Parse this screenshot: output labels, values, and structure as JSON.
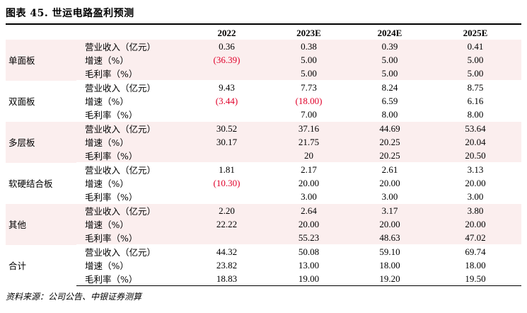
{
  "title": "图表 45. 世运电路盈利预测",
  "columns": [
    "",
    "",
    "2022",
    "2023E",
    "2024E",
    "2025E"
  ],
  "groups": [
    {
      "segment": "单面板",
      "rows": [
        {
          "metric": "营业收入（亿元）",
          "values": [
            "0.36",
            "0.38",
            "0.39",
            "0.41"
          ],
          "neg": [
            false,
            false,
            false,
            false
          ]
        },
        {
          "metric": "增速（%）",
          "values": [
            "(36.39)",
            "5.00",
            "5.00",
            "5.00"
          ],
          "neg": [
            true,
            false,
            false,
            false
          ]
        },
        {
          "metric": "毛利率（%）",
          "values": [
            "",
            "5.00",
            "5.00",
            "5.00"
          ],
          "neg": [
            false,
            false,
            false,
            false
          ]
        }
      ]
    },
    {
      "segment": "双面板",
      "rows": [
        {
          "metric": "营业收入（亿元）",
          "values": [
            "9.43",
            "7.73",
            "8.24",
            "8.75"
          ],
          "neg": [
            false,
            false,
            false,
            false
          ]
        },
        {
          "metric": "增速（%）",
          "values": [
            "(3.44)",
            "(18.00)",
            "6.59",
            "6.16"
          ],
          "neg": [
            true,
            true,
            false,
            false
          ]
        },
        {
          "metric": "毛利率（%）",
          "values": [
            "",
            "7.00",
            "8.00",
            "8.00"
          ],
          "neg": [
            false,
            false,
            false,
            false
          ]
        }
      ]
    },
    {
      "segment": "多层板",
      "rows": [
        {
          "metric": "营业收入（亿元）",
          "values": [
            "30.52",
            "37.16",
            "44.69",
            "53.64"
          ],
          "neg": [
            false,
            false,
            false,
            false
          ]
        },
        {
          "metric": "增速（%）",
          "values": [
            "30.17",
            "21.75",
            "20.25",
            "20.04"
          ],
          "neg": [
            false,
            false,
            false,
            false
          ]
        },
        {
          "metric": "毛利率（%）",
          "values": [
            "",
            "20",
            "20.25",
            "20.50"
          ],
          "neg": [
            false,
            false,
            false,
            false
          ]
        }
      ]
    },
    {
      "segment": "软硬结合板",
      "rows": [
        {
          "metric": "营业收入（亿元）",
          "values": [
            "1.81",
            "2.17",
            "2.61",
            "3.13"
          ],
          "neg": [
            false,
            false,
            false,
            false
          ]
        },
        {
          "metric": "增速（%）",
          "values": [
            "(10.30)",
            "20.00",
            "20.00",
            "20.00"
          ],
          "neg": [
            true,
            false,
            false,
            false
          ]
        },
        {
          "metric": "毛利率（%）",
          "values": [
            "",
            "3.00",
            "3.00",
            "3.00"
          ],
          "neg": [
            false,
            false,
            false,
            false
          ]
        }
      ]
    },
    {
      "segment": "其他",
      "rows": [
        {
          "metric": "营业收入（亿元）",
          "values": [
            "2.20",
            "2.64",
            "3.17",
            "3.80"
          ],
          "neg": [
            false,
            false,
            false,
            false
          ]
        },
        {
          "metric": "增速（%）",
          "values": [
            "22.22",
            "20.00",
            "20.00",
            "20.00"
          ],
          "neg": [
            false,
            false,
            false,
            false
          ]
        },
        {
          "metric": "毛利率（%）",
          "values": [
            "",
            "55.23",
            "48.63",
            "47.02"
          ],
          "neg": [
            false,
            false,
            false,
            false
          ]
        }
      ]
    },
    {
      "segment": "合计",
      "rows": [
        {
          "metric": "营业收入（亿元）",
          "values": [
            "44.32",
            "50.08",
            "59.10",
            "69.74"
          ],
          "neg": [
            false,
            false,
            false,
            false
          ]
        },
        {
          "metric": "增速（%）",
          "values": [
            "23.82",
            "13.00",
            "18.00",
            "18.00"
          ],
          "neg": [
            false,
            false,
            false,
            false
          ]
        },
        {
          "metric": "毛利率（%）",
          "values": [
            "18.83",
            "19.00",
            "19.20",
            "19.50"
          ],
          "neg": [
            false,
            false,
            false,
            false
          ]
        }
      ]
    }
  ],
  "footnote": "资料来源：公司公告、中银证券测算",
  "colors": {
    "shade": "#fbeeee",
    "negative": "#e0002a"
  }
}
